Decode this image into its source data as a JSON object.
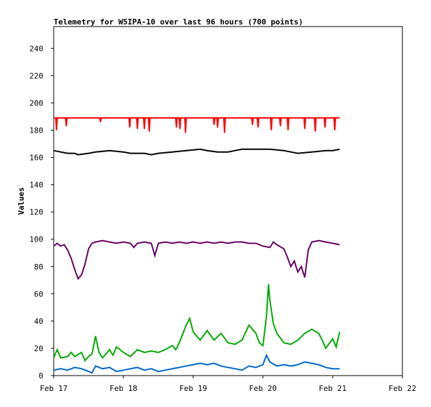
{
  "chart_data": {
    "type": "line",
    "title": "Telemetry for W5IPA-10 over last 96 hours (700 points)",
    "xlabel": "",
    "ylabel": "Values",
    "x_ticks": [
      "Feb 17",
      "Feb 18",
      "Feb 19",
      "Feb 20",
      "Feb 21",
      "Feb 22"
    ],
    "xlim": [
      "Feb 17",
      "Feb 22"
    ],
    "ylim": [
      0,
      256
    ],
    "y_ticks": [
      0,
      20,
      40,
      60,
      80,
      100,
      120,
      140,
      160,
      180,
      200,
      220,
      240
    ],
    "grid": false,
    "legend": "none",
    "series": [
      {
        "color": "#ff0000",
        "style": "spikes",
        "points": [
          [
            0.0,
            189
          ],
          [
            0.03,
            189
          ],
          [
            0.04,
            180
          ],
          [
            0.05,
            189
          ],
          [
            0.17,
            189
          ],
          [
            0.18,
            183
          ],
          [
            0.19,
            189
          ],
          [
            0.66,
            189
          ],
          [
            0.67,
            186
          ],
          [
            0.68,
            189
          ],
          [
            1.08,
            189
          ],
          [
            1.09,
            182
          ],
          [
            1.1,
            189
          ],
          [
            1.19,
            189
          ],
          [
            1.2,
            181
          ],
          [
            1.21,
            189
          ],
          [
            1.29,
            189
          ],
          [
            1.3,
            181
          ],
          [
            1.31,
            189
          ],
          [
            1.36,
            189
          ],
          [
            1.37,
            179
          ],
          [
            1.38,
            189
          ],
          [
            1.75,
            189
          ],
          [
            1.76,
            182
          ],
          [
            1.77,
            189
          ],
          [
            1.8,
            189
          ],
          [
            1.81,
            181
          ],
          [
            1.82,
            189
          ],
          [
            1.88,
            189
          ],
          [
            1.89,
            178
          ],
          [
            1.9,
            189
          ],
          [
            2.29,
            189
          ],
          [
            2.3,
            184
          ],
          [
            2.31,
            189
          ],
          [
            2.34,
            189
          ],
          [
            2.35,
            182
          ],
          [
            2.36,
            189
          ],
          [
            2.44,
            189
          ],
          [
            2.45,
            178
          ],
          [
            2.46,
            189
          ],
          [
            2.84,
            189
          ],
          [
            2.85,
            184
          ],
          [
            2.86,
            189
          ],
          [
            2.92,
            189
          ],
          [
            2.93,
            182
          ],
          [
            2.94,
            189
          ],
          [
            3.11,
            189
          ],
          [
            3.12,
            180
          ],
          [
            3.13,
            189
          ],
          [
            3.24,
            189
          ],
          [
            3.25,
            183
          ],
          [
            3.26,
            189
          ],
          [
            3.35,
            189
          ],
          [
            3.36,
            180
          ],
          [
            3.37,
            189
          ],
          [
            3.59,
            189
          ],
          [
            3.6,
            181
          ],
          [
            3.61,
            189
          ],
          [
            3.74,
            189
          ],
          [
            3.75,
            179
          ],
          [
            3.76,
            189
          ],
          [
            3.88,
            189
          ],
          [
            3.89,
            182
          ],
          [
            3.9,
            189
          ],
          [
            4.02,
            189
          ],
          [
            4.03,
            180
          ],
          [
            4.04,
            189
          ],
          [
            4.1,
            189
          ]
        ]
      },
      {
        "color": "#000000",
        "points": [
          [
            0.0,
            165
          ],
          [
            0.1,
            164
          ],
          [
            0.2,
            163
          ],
          [
            0.3,
            163
          ],
          [
            0.35,
            162
          ],
          [
            0.5,
            163
          ],
          [
            0.6,
            164
          ],
          [
            0.8,
            165
          ],
          [
            1.0,
            164
          ],
          [
            1.1,
            163
          ],
          [
            1.3,
            163
          ],
          [
            1.4,
            162
          ],
          [
            1.5,
            163
          ],
          [
            1.7,
            164
          ],
          [
            1.9,
            165
          ],
          [
            2.1,
            166
          ],
          [
            2.2,
            165
          ],
          [
            2.35,
            164
          ],
          [
            2.5,
            164
          ],
          [
            2.6,
            165
          ],
          [
            2.7,
            166
          ],
          [
            2.9,
            166
          ],
          [
            3.1,
            166
          ],
          [
            3.3,
            165
          ],
          [
            3.4,
            164
          ],
          [
            3.5,
            163
          ],
          [
            3.7,
            164
          ],
          [
            3.9,
            165
          ],
          [
            4.0,
            165
          ],
          [
            4.1,
            166
          ]
        ]
      },
      {
        "color": "#660066",
        "points": [
          [
            0.0,
            95
          ],
          [
            0.05,
            97
          ],
          [
            0.1,
            95
          ],
          [
            0.15,
            96
          ],
          [
            0.2,
            92
          ],
          [
            0.25,
            86
          ],
          [
            0.3,
            78
          ],
          [
            0.35,
            71
          ],
          [
            0.4,
            74
          ],
          [
            0.45,
            82
          ],
          [
            0.5,
            93
          ],
          [
            0.55,
            97
          ],
          [
            0.6,
            98
          ],
          [
            0.7,
            99
          ],
          [
            0.8,
            98
          ],
          [
            0.9,
            97
          ],
          [
            1.0,
            98
          ],
          [
            1.1,
            97
          ],
          [
            1.15,
            94
          ],
          [
            1.2,
            97
          ],
          [
            1.3,
            98
          ],
          [
            1.4,
            97
          ],
          [
            1.45,
            88
          ],
          [
            1.5,
            97
          ],
          [
            1.6,
            98
          ],
          [
            1.7,
            97
          ],
          [
            1.8,
            98
          ],
          [
            1.9,
            97
          ],
          [
            2.0,
            98
          ],
          [
            2.1,
            97
          ],
          [
            2.2,
            98
          ],
          [
            2.3,
            97
          ],
          [
            2.4,
            98
          ],
          [
            2.5,
            97
          ],
          [
            2.6,
            98
          ],
          [
            2.7,
            98
          ],
          [
            2.8,
            97
          ],
          [
            2.9,
            97
          ],
          [
            3.0,
            95
          ],
          [
            3.1,
            94
          ],
          [
            3.15,
            98
          ],
          [
            3.2,
            96
          ],
          [
            3.3,
            93
          ],
          [
            3.35,
            87
          ],
          [
            3.4,
            80
          ],
          [
            3.45,
            84
          ],
          [
            3.5,
            76
          ],
          [
            3.55,
            80
          ],
          [
            3.6,
            72
          ],
          [
            3.65,
            92
          ],
          [
            3.7,
            98
          ],
          [
            3.8,
            99
          ],
          [
            3.9,
            98
          ],
          [
            4.0,
            97
          ],
          [
            4.1,
            96
          ]
        ]
      },
      {
        "color": "#00aa00",
        "points": [
          [
            0.0,
            13
          ],
          [
            0.05,
            19
          ],
          [
            0.1,
            13
          ],
          [
            0.2,
            14
          ],
          [
            0.25,
            17
          ],
          [
            0.3,
            14
          ],
          [
            0.4,
            17
          ],
          [
            0.45,
            11
          ],
          [
            0.5,
            14
          ],
          [
            0.55,
            16
          ],
          [
            0.6,
            29
          ],
          [
            0.65,
            17
          ],
          [
            0.7,
            13
          ],
          [
            0.75,
            16
          ],
          [
            0.8,
            19
          ],
          [
            0.85,
            15
          ],
          [
            0.9,
            21
          ],
          [
            1.0,
            17
          ],
          [
            1.1,
            14
          ],
          [
            1.2,
            19
          ],
          [
            1.3,
            17
          ],
          [
            1.4,
            18
          ],
          [
            1.5,
            17
          ],
          [
            1.6,
            19
          ],
          [
            1.7,
            22
          ],
          [
            1.75,
            19
          ],
          [
            1.8,
            24
          ],
          [
            1.9,
            37
          ],
          [
            1.95,
            42
          ],
          [
            2.0,
            32
          ],
          [
            2.1,
            26
          ],
          [
            2.2,
            33
          ],
          [
            2.3,
            26
          ],
          [
            2.4,
            31
          ],
          [
            2.5,
            24
          ],
          [
            2.6,
            23
          ],
          [
            2.7,
            26
          ],
          [
            2.8,
            37
          ],
          [
            2.9,
            31
          ],
          [
            2.95,
            24
          ],
          [
            3.0,
            22
          ],
          [
            3.05,
            43
          ],
          [
            3.08,
            67
          ],
          [
            3.1,
            55
          ],
          [
            3.15,
            38
          ],
          [
            3.2,
            31
          ],
          [
            3.3,
            24
          ],
          [
            3.4,
            23
          ],
          [
            3.5,
            26
          ],
          [
            3.6,
            31
          ],
          [
            3.7,
            34
          ],
          [
            3.8,
            31
          ],
          [
            3.85,
            26
          ],
          [
            3.9,
            20
          ],
          [
            4.0,
            27
          ],
          [
            4.05,
            21
          ],
          [
            4.1,
            32
          ]
        ]
      },
      {
        "color": "#0066cc",
        "points": [
          [
            0.0,
            4
          ],
          [
            0.1,
            5
          ],
          [
            0.2,
            4
          ],
          [
            0.3,
            6
          ],
          [
            0.4,
            5
          ],
          [
            0.5,
            3
          ],
          [
            0.55,
            2
          ],
          [
            0.6,
            7
          ],
          [
            0.7,
            5
          ],
          [
            0.8,
            6
          ],
          [
            0.9,
            3
          ],
          [
            1.0,
            4
          ],
          [
            1.1,
            5
          ],
          [
            1.2,
            6
          ],
          [
            1.3,
            4
          ],
          [
            1.4,
            5
          ],
          [
            1.5,
            3
          ],
          [
            1.6,
            4
          ],
          [
            1.7,
            5
          ],
          [
            1.8,
            6
          ],
          [
            1.9,
            7
          ],
          [
            2.0,
            8
          ],
          [
            2.1,
            9
          ],
          [
            2.2,
            8
          ],
          [
            2.3,
            9
          ],
          [
            2.4,
            7
          ],
          [
            2.5,
            6
          ],
          [
            2.6,
            5
          ],
          [
            2.7,
            4
          ],
          [
            2.8,
            7
          ],
          [
            2.9,
            6
          ],
          [
            3.0,
            8
          ],
          [
            3.05,
            15
          ],
          [
            3.1,
            10
          ],
          [
            3.2,
            7
          ],
          [
            3.3,
            8
          ],
          [
            3.4,
            7
          ],
          [
            3.5,
            8
          ],
          [
            3.6,
            10
          ],
          [
            3.7,
            9
          ],
          [
            3.8,
            8
          ],
          [
            3.9,
            6
          ],
          [
            4.0,
            5
          ],
          [
            4.1,
            5
          ]
        ]
      }
    ]
  }
}
